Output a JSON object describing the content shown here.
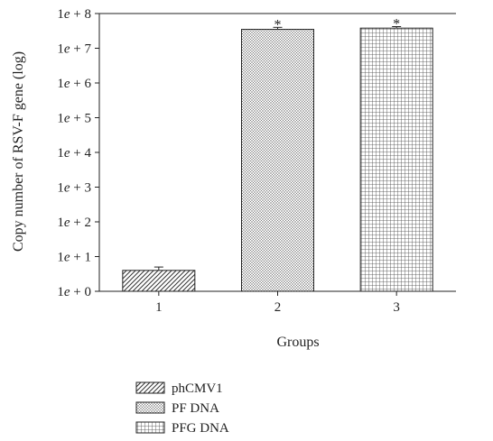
{
  "chart_data": {
    "type": "bar",
    "scale": "log",
    "categories": [
      "1",
      "2",
      "3"
    ],
    "series": [
      {
        "legend": "phCMV1",
        "category": "1",
        "value": 4,
        "error": 1.0,
        "significance": "",
        "pattern": "diagonal-hatch"
      },
      {
        "legend": "PF DNA",
        "category": "2",
        "value": 35000000,
        "error": 5000000,
        "significance": "*",
        "pattern": "fine-crosshatch"
      },
      {
        "legend": "PFG DNA",
        "category": "3",
        "value": 38000000,
        "error": 4000000,
        "significance": "*",
        "pattern": "grid"
      }
    ],
    "xlabel": "Groups",
    "ylabel": "Copy number of RSV-F gene (log)",
    "ylim": [
      1,
      100000000
    ],
    "y_ticks": [
      {
        "value": 1,
        "label_a": "1",
        "label_e": "e",
        "label_b": " + 0"
      },
      {
        "value": 10,
        "label_a": "1",
        "label_e": "e",
        "label_b": " + 1"
      },
      {
        "value": 100,
        "label_a": "1",
        "label_e": "e",
        "label_b": " + 2"
      },
      {
        "value": 1000,
        "label_a": "1",
        "label_e": "e",
        "label_b": " + 3"
      },
      {
        "value": 10000,
        "label_a": "1",
        "label_e": "e",
        "label_b": " + 4"
      },
      {
        "value": 100000,
        "label_a": "1",
        "label_e": "e",
        "label_b": " + 5"
      },
      {
        "value": 1000000,
        "label_a": "1",
        "label_e": "e",
        "label_b": " + 6"
      },
      {
        "value": 10000000,
        "label_a": "1",
        "label_e": "e",
        "label_b": " + 7"
      },
      {
        "value": 100000000,
        "label_a": "1",
        "label_e": "e",
        "label_b": " + 8"
      }
    ],
    "grid": false,
    "legend_position": "bottom-left"
  }
}
